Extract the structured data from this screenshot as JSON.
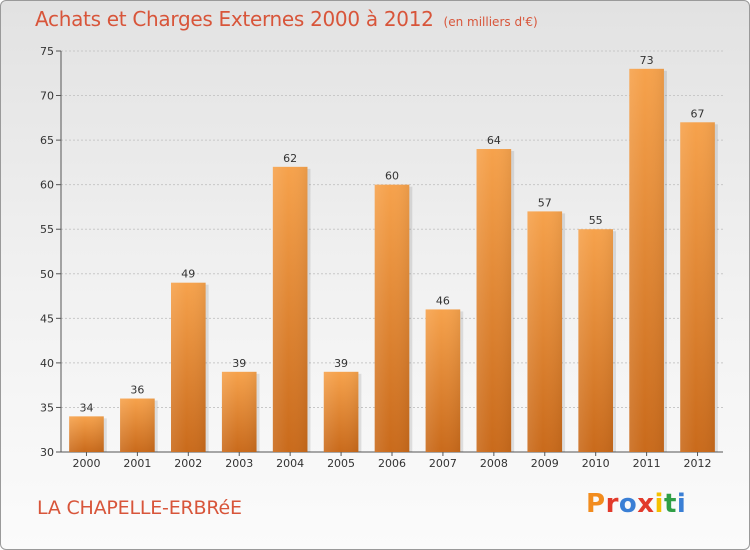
{
  "header": {
    "title": "Achats et Charges Externes 2000 à 2012",
    "unit": "(en milliers d'€)"
  },
  "footer": {
    "location": "LA CHAPELLE-ERBRéE",
    "brand": "Proxiti",
    "brand_colors": [
      "#f28c1e",
      "#e23a2b",
      "#3a7fd5",
      "#e23a2b",
      "#f5c000",
      "#2f9f45",
      "#3a7fd5"
    ]
  },
  "chart_data": {
    "type": "bar",
    "title": "Achats et Charges Externes 2000 à 2012",
    "subtitle": "(en milliers d'€)",
    "xlabel": "",
    "ylabel": "",
    "categories": [
      "2000",
      "2001",
      "2002",
      "2003",
      "2004",
      "2005",
      "2006",
      "2007",
      "2008",
      "2009",
      "2010",
      "2011",
      "2012"
    ],
    "values": [
      34,
      36,
      49,
      39,
      62,
      39,
      60,
      46,
      64,
      57,
      55,
      73,
      67
    ],
    "ylim": [
      30,
      75
    ],
    "yticks": [
      30,
      35,
      40,
      45,
      50,
      55,
      60,
      65,
      70,
      75
    ],
    "grid": true,
    "bar_color": "#f0922e",
    "bar_color_dark": "#c8681a"
  }
}
